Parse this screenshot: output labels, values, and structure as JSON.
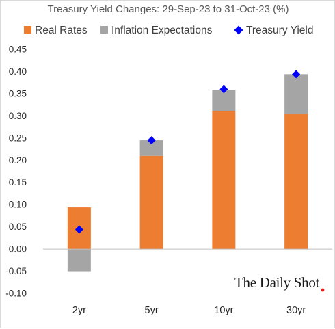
{
  "colors": {
    "real_rates": "#ED7D31",
    "inflation_expectations": "#A5A5A5",
    "treasury_yield": "#0000FF",
    "brand_dot": "#E02020"
  },
  "branding": {
    "text": "The Daily Shot"
  },
  "chart_data": {
    "type": "bar",
    "stacked": true,
    "title": "Treasury Yield Changes: 29-Sep-23 to 31-Oct-23 (%)",
    "xlabel": "",
    "ylabel": "",
    "categories": [
      "2yr",
      "5yr",
      "10yr",
      "30yr"
    ],
    "ylim": [
      -0.1,
      0.45
    ],
    "yticks": [
      0.45,
      0.4,
      0.35,
      0.3,
      0.25,
      0.2,
      0.15,
      0.1,
      0.05,
      0.0,
      -0.05,
      -0.1
    ],
    "ytick_labels": [
      "0.45",
      "0.40",
      "0.35",
      "0.30",
      "0.25",
      "0.20",
      "0.15",
      "0.10",
      "0.05",
      "0.00",
      "-0.05",
      "-0.10"
    ],
    "grid": false,
    "legend_position": "top",
    "series": [
      {
        "name": "Real Rates",
        "type": "bar",
        "values": [
          0.094,
          0.21,
          0.311,
          0.305
        ]
      },
      {
        "name": "Inflation Expectations",
        "type": "bar",
        "values": [
          -0.05,
          0.035,
          0.048,
          0.089
        ]
      },
      {
        "name": "Treasury Yield",
        "type": "marker",
        "values": [
          0.044,
          0.245,
          0.36,
          0.394
        ]
      }
    ]
  }
}
